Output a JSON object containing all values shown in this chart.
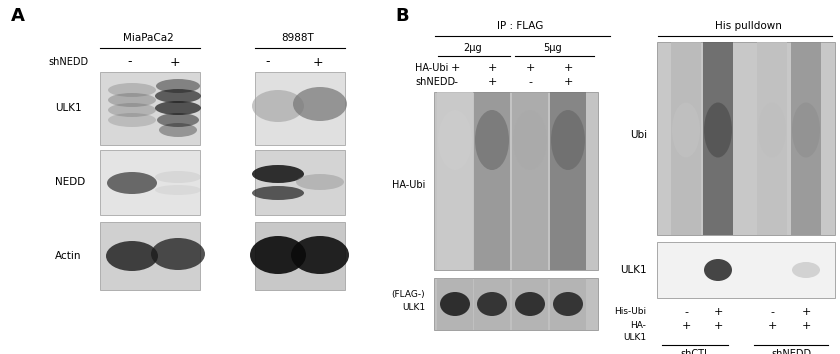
{
  "fig_width": 8.4,
  "fig_height": 3.54,
  "bg_color": "#ffffff",
  "dpi": 100,
  "panel_A": {
    "label": "A",
    "cell_lines": [
      "MiaPaCa2",
      "8988T"
    ],
    "shNEDD_labels": [
      "-",
      "+",
      "-",
      "+"
    ],
    "row_labels": [
      "ULK1",
      "NEDD",
      "Actin"
    ]
  },
  "panel_B": {
    "label": "B",
    "ip_flag_header": "IP : FLAG",
    "his_pulldown_header": "His pulldown",
    "dose_labels": [
      "2μg",
      "5μg"
    ],
    "haubi_signs": [
      "+",
      "+",
      "+",
      "+"
    ],
    "shnedd_signs": [
      "-",
      "+",
      "-",
      "+"
    ],
    "row_label_haubi": "HA-Ubi",
    "row_label_shnedd": "shNEDD",
    "row_label_haubi_left": "HA-Ubi",
    "row_label_flag_ulk1": "(FLAG-)\nULK1",
    "row_label_ubi": "Ubi",
    "row_label_ulk1": "ULK1",
    "his_ubi_signs": [
      "-",
      "+",
      "-",
      "+"
    ],
    "ha_ulk1_signs": [
      "+",
      "+",
      "+",
      "+"
    ],
    "his_ubi_label": "His-Ubi",
    "ha_ulk1_label": "HA-\nULK1",
    "shctl_label": "shCTL",
    "shnedd_label": "shNEDD"
  }
}
